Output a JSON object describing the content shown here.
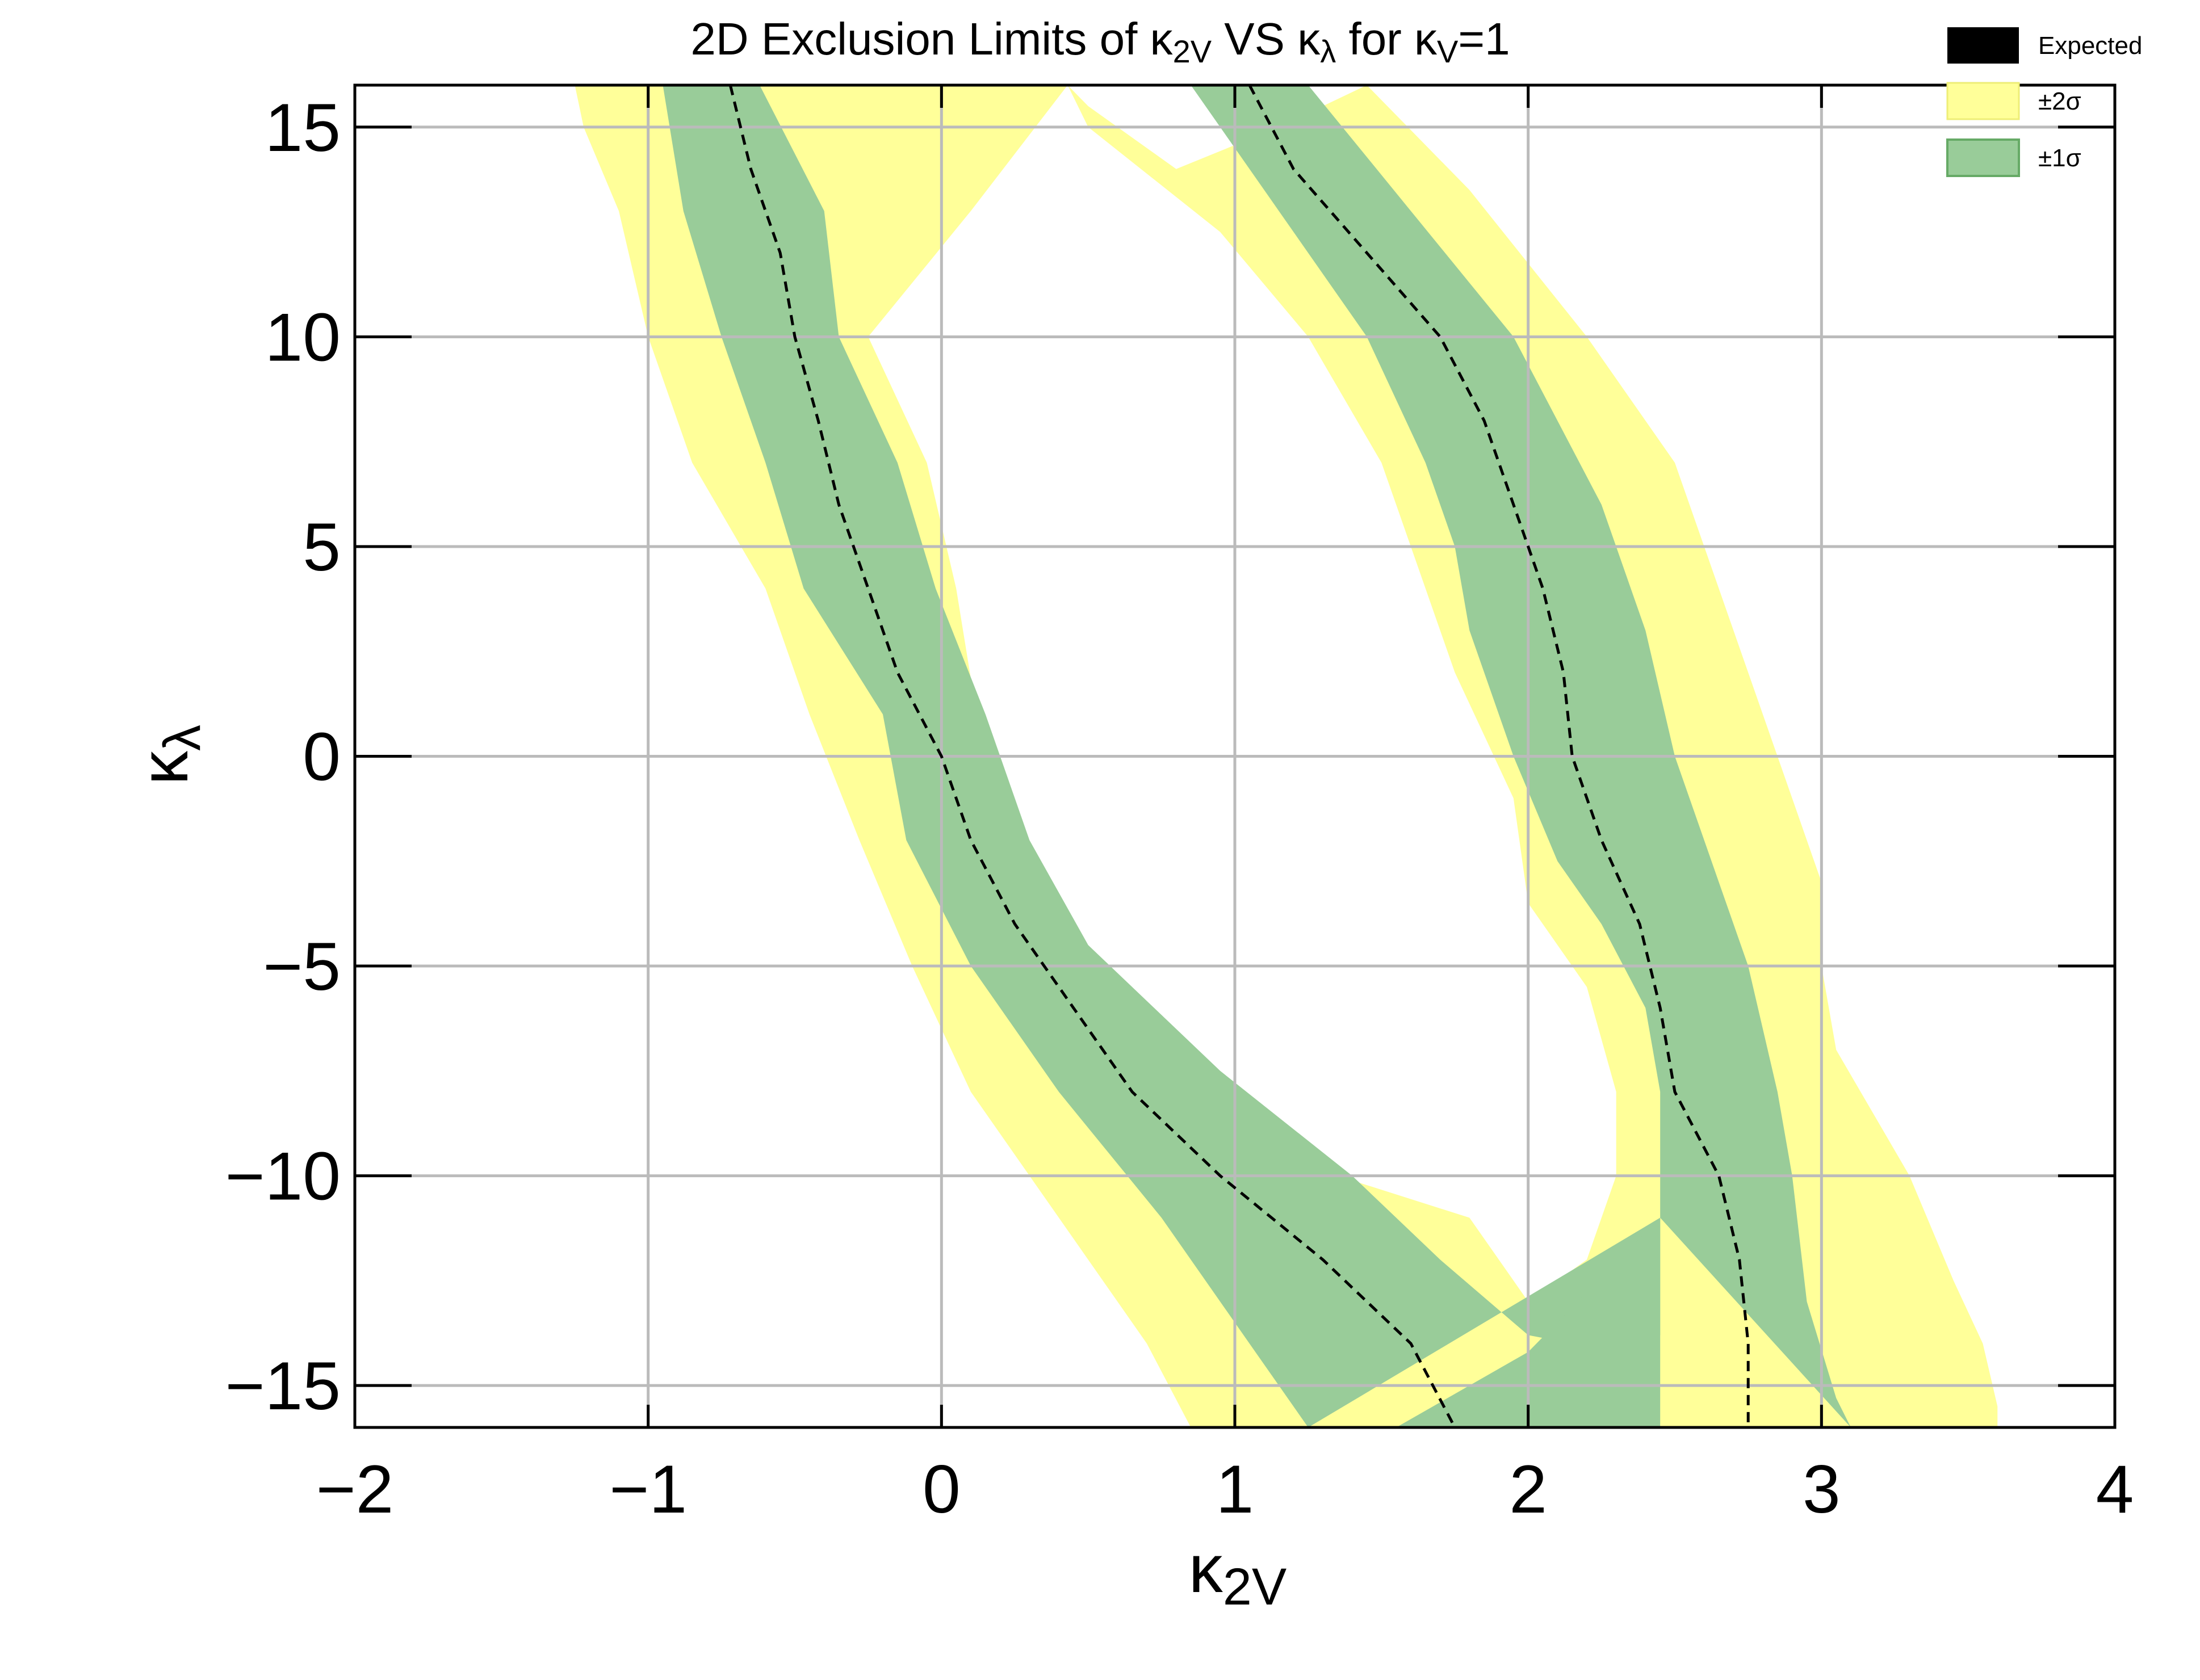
{
  "chart_data": {
    "type": "contour",
    "title": {
      "pre": "2D Exclusion Limits of κ",
      "sub1": "2V",
      "mid": " VS κ",
      "sub2": "λ",
      "mid2": " for κ",
      "sub3": "V",
      "post": "=1"
    },
    "xlabel": {
      "main": "κ",
      "sub": "2V"
    },
    "ylabel": {
      "main": "κ",
      "sub": "λ"
    },
    "xlim": [
      -2,
      4
    ],
    "ylim": [
      -16,
      16
    ],
    "x_ticks": [
      -2,
      -1,
      0,
      1,
      2,
      3,
      4
    ],
    "y_ticks": [
      -15,
      -10,
      -5,
      0,
      5,
      10,
      15
    ],
    "x_tick_labels": [
      "−2",
      "−1",
      "0",
      "1",
      "2",
      "3",
      "4"
    ],
    "y_tick_labels": [
      "−15",
      "−10",
      "−5",
      "0",
      "5",
      "10",
      "15"
    ],
    "grid": true,
    "legend_position": "top-right",
    "legend": [
      {
        "label": "Expected",
        "color": "#000000"
      },
      {
        "label": "±2σ",
        "color": "#ffff99"
      },
      {
        "label": "±1σ",
        "color": "#99cc99"
      }
    ],
    "colors": {
      "two_sigma": "#ffff99",
      "one_sigma": "#99cc99",
      "expected": "#000000",
      "grid": "#bbbbbb"
    },
    "bands": {
      "two_sigma": [
        {
          "outer": [
            [
              -1.25,
              16
            ],
            [
              -1.22,
              15
            ],
            [
              -1.1,
              13
            ],
            [
              -1.0,
              10
            ],
            [
              -0.85,
              7
            ],
            [
              -0.6,
              4
            ],
            [
              -0.45,
              1
            ],
            [
              -0.28,
              -2
            ],
            [
              -0.1,
              -5
            ],
            [
              0.1,
              -8
            ],
            [
              0.4,
              -11
            ],
            [
              0.7,
              -14
            ],
            [
              0.85,
              -16
            ]
          ],
          "inner": [
            [
              0.43,
              16
            ],
            [
              0.1,
              13
            ],
            [
              -0.25,
              10
            ],
            [
              -0.05,
              7
            ],
            [
              0.05,
              4
            ],
            [
              0.12,
              1
            ],
            [
              0.25,
              -2
            ],
            [
              0.5,
              -5
            ],
            [
              0.95,
              -8
            ],
            [
              1.35,
              -10
            ],
            [
              1.8,
              -11
            ],
            [
              2.0,
              -13
            ],
            [
              2.2,
              -12
            ],
            [
              2.3,
              -10
            ],
            [
              2.3,
              -8
            ],
            [
              2.2,
              -5.5
            ],
            [
              2.0,
              -3.5
            ],
            [
              1.95,
              -1
            ],
            [
              1.75,
              2
            ],
            [
              1.6,
              5
            ],
            [
              1.5,
              7
            ],
            [
              1.25,
              10
            ],
            [
              0.95,
              12.5
            ],
            [
              0.5,
              15
            ],
            [
              0.43,
              16
            ]
          ],
          "mode": "outer-left"
        },
        {
          "outer": [
            [
              1.45,
              16
            ],
            [
              1.8,
              13.5
            ],
            [
              2.2,
              10
            ],
            [
              2.5,
              7
            ],
            [
              2.6,
              5
            ],
            [
              2.7,
              3
            ],
            [
              2.85,
              0
            ],
            [
              3.0,
              -3
            ],
            [
              3.0,
              -5
            ],
            [
              3.05,
              -7
            ],
            [
              3.3,
              -10
            ],
            [
              3.45,
              -12.5
            ],
            [
              3.55,
              -14
            ],
            [
              3.6,
              -15.5
            ],
            [
              3.6,
              -16
            ]
          ],
          "mode": "right-edge"
        }
      ],
      "one_sigma": [
        {
          "left": [
            [
              -0.95,
              16
            ],
            [
              -0.88,
              13
            ],
            [
              -0.75,
              10
            ],
            [
              -0.6,
              7
            ],
            [
              -0.47,
              4
            ],
            [
              -0.2,
              1
            ],
            [
              -0.12,
              -2
            ],
            [
              0.1,
              -5
            ],
            [
              0.4,
              -8
            ],
            [
              0.75,
              -11
            ],
            [
              1.05,
              -14
            ],
            [
              1.25,
              -16
            ]
          ],
          "right": [
            [
              -0.62,
              16
            ],
            [
              -0.4,
              13
            ],
            [
              -0.35,
              10
            ],
            [
              -0.15,
              7
            ],
            [
              -0.02,
              4
            ],
            [
              0.15,
              1
            ],
            [
              0.3,
              -2
            ],
            [
              0.5,
              -4.5
            ],
            [
              0.95,
              -7.5
            ],
            [
              1.4,
              -10
            ],
            [
              1.7,
              -12
            ],
            [
              2.0,
              -13.8
            ],
            [
              2.3,
              -14.2
            ],
            [
              2.45,
              -13.8
            ],
            [
              2.45,
              -11
            ]
          ]
        },
        {
          "left": [
            [
              0.85,
              16
            ],
            [
              1.1,
              13.5
            ],
            [
              1.45,
              10
            ],
            [
              1.65,
              7
            ],
            [
              1.75,
              5
            ],
            [
              1.8,
              3
            ],
            [
              1.95,
              0
            ],
            [
              2.1,
              -2.5
            ],
            [
              2.25,
              -4
            ],
            [
              2.4,
              -6
            ],
            [
              2.45,
              -8
            ],
            [
              2.45,
              -11
            ]
          ],
          "right": [
            [
              1.25,
              16
            ],
            [
              1.6,
              13
            ],
            [
              1.95,
              10
            ],
            [
              2.25,
              6
            ],
            [
              2.4,
              3
            ],
            [
              2.5,
              0
            ],
            [
              2.65,
              -3
            ],
            [
              2.75,
              -5
            ],
            [
              2.85,
              -8
            ],
            [
              2.9,
              -10
            ],
            [
              2.95,
              -13
            ],
            [
              3.05,
              -15.3
            ],
            [
              3.1,
              -16
            ]
          ]
        }
      ]
    },
    "expected": {
      "left": [
        [
          -0.72,
          16
        ],
        [
          -0.65,
          14
        ],
        [
          -0.55,
          12
        ],
        [
          -0.5,
          10
        ],
        [
          -0.42,
          8
        ],
        [
          -0.35,
          6
        ],
        [
          -0.25,
          4
        ],
        [
          -0.15,
          2
        ],
        [
          0.0,
          0
        ],
        [
          0.1,
          -2
        ],
        [
          0.25,
          -4
        ],
        [
          0.45,
          -6
        ],
        [
          0.65,
          -8
        ],
        [
          0.95,
          -10
        ],
        [
          1.3,
          -12
        ],
        [
          1.6,
          -14
        ],
        [
          1.75,
          -16
        ]
      ],
      "right": [
        [
          1.05,
          16
        ],
        [
          1.2,
          14
        ],
        [
          1.45,
          12
        ],
        [
          1.7,
          10
        ],
        [
          1.85,
          8
        ],
        [
          1.95,
          6
        ],
        [
          2.05,
          4
        ],
        [
          2.12,
          2
        ],
        [
          2.15,
          0
        ],
        [
          2.25,
          -2
        ],
        [
          2.38,
          -4
        ],
        [
          2.45,
          -6
        ],
        [
          2.5,
          -8
        ],
        [
          2.65,
          -10
        ],
        [
          2.72,
          -12
        ],
        [
          2.75,
          -14
        ],
        [
          2.75,
          -16
        ]
      ]
    }
  }
}
